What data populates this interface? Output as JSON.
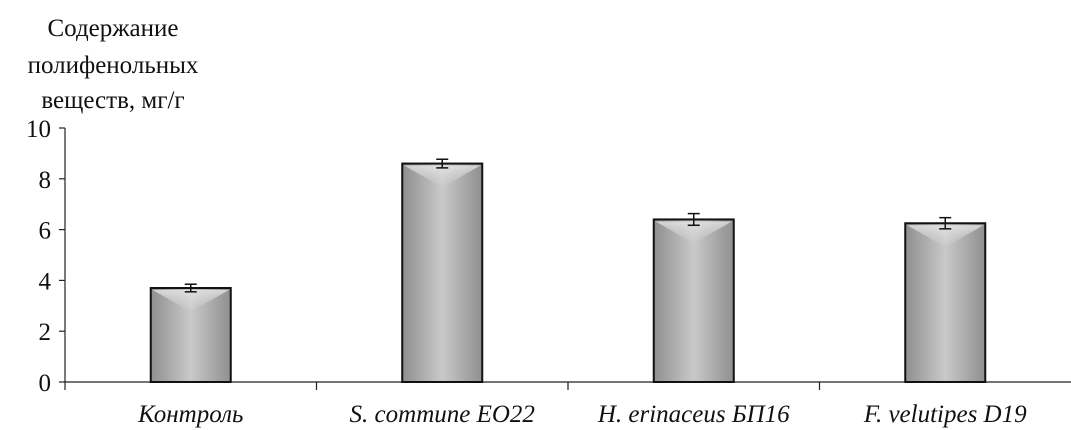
{
  "chart_data": {
    "type": "bar",
    "ylabel": [
      "Содержание",
      "полифенольных",
      "веществ, мг/г"
    ],
    "categories": [
      "Контроль",
      "S. commune EO22",
      "H. erinaceus БП16",
      "F. velutipes D19"
    ],
    "values": [
      3.7,
      8.6,
      6.4,
      6.25
    ],
    "errors": [
      0.15,
      0.17,
      0.23,
      0.22
    ],
    "ylim": [
      0,
      10
    ],
    "yticks": [
      0,
      2,
      4,
      6,
      8,
      10
    ],
    "grid": false,
    "legend": "none",
    "bar_color": "#a8a8a8"
  }
}
